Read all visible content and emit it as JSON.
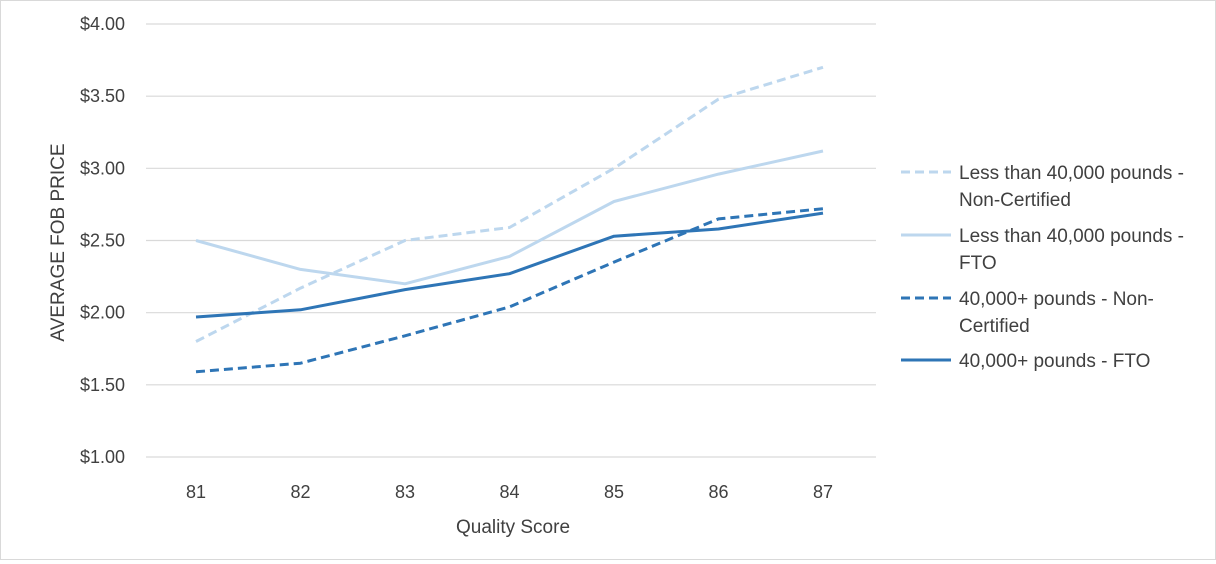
{
  "chart_data": {
    "type": "line",
    "title": "",
    "xlabel": "Quality Score",
    "ylabel": "AVERAGE FOB PRICE",
    "x": [
      81,
      82,
      83,
      84,
      85,
      86,
      87
    ],
    "x_tick_labels": [
      "81",
      "82",
      "83",
      "84",
      "85",
      "86",
      "87"
    ],
    "ylim": [
      1.0,
      4.0
    ],
    "y_ticks": [
      1.0,
      1.5,
      2.0,
      2.5,
      3.0,
      3.5,
      4.0
    ],
    "y_tick_labels": [
      "$1.00",
      "$1.50",
      "$2.00",
      "$2.50",
      "$3.00",
      "$3.50",
      "$4.00"
    ],
    "grid": "horizontal",
    "legend_position": "right",
    "series": [
      {
        "name": "Less than 40,000 pounds - Non-Certified",
        "legend_lines": [
          "Less than 40,000 pounds -",
          "Non-Certified"
        ],
        "values": [
          1.8,
          2.17,
          2.5,
          2.59,
          3.0,
          3.48,
          3.7
        ],
        "color": "#bdd7ee",
        "dash": "dashed"
      },
      {
        "name": "Less than 40,000 pounds - FTO",
        "legend_lines": [
          "Less than 40,000 pounds -",
          "FTO"
        ],
        "values": [
          2.5,
          2.3,
          2.2,
          2.39,
          2.77,
          2.96,
          3.12
        ],
        "color": "#bdd7ee",
        "dash": "solid"
      },
      {
        "name": "40,000+ pounds - Non-Certified",
        "legend_lines": [
          "40,000+ pounds - Non-",
          "Certified"
        ],
        "values": [
          1.59,
          1.65,
          1.84,
          2.04,
          2.35,
          2.65,
          2.72
        ],
        "color": "#2e75b6",
        "dash": "dashed"
      },
      {
        "name": "40,000+ pounds - FTO",
        "legend_lines": [
          "40,000+ pounds - FTO"
        ],
        "values": [
          1.97,
          2.02,
          2.16,
          2.27,
          2.53,
          2.58,
          2.69
        ],
        "color": "#2e75b6",
        "dash": "solid"
      }
    ]
  }
}
